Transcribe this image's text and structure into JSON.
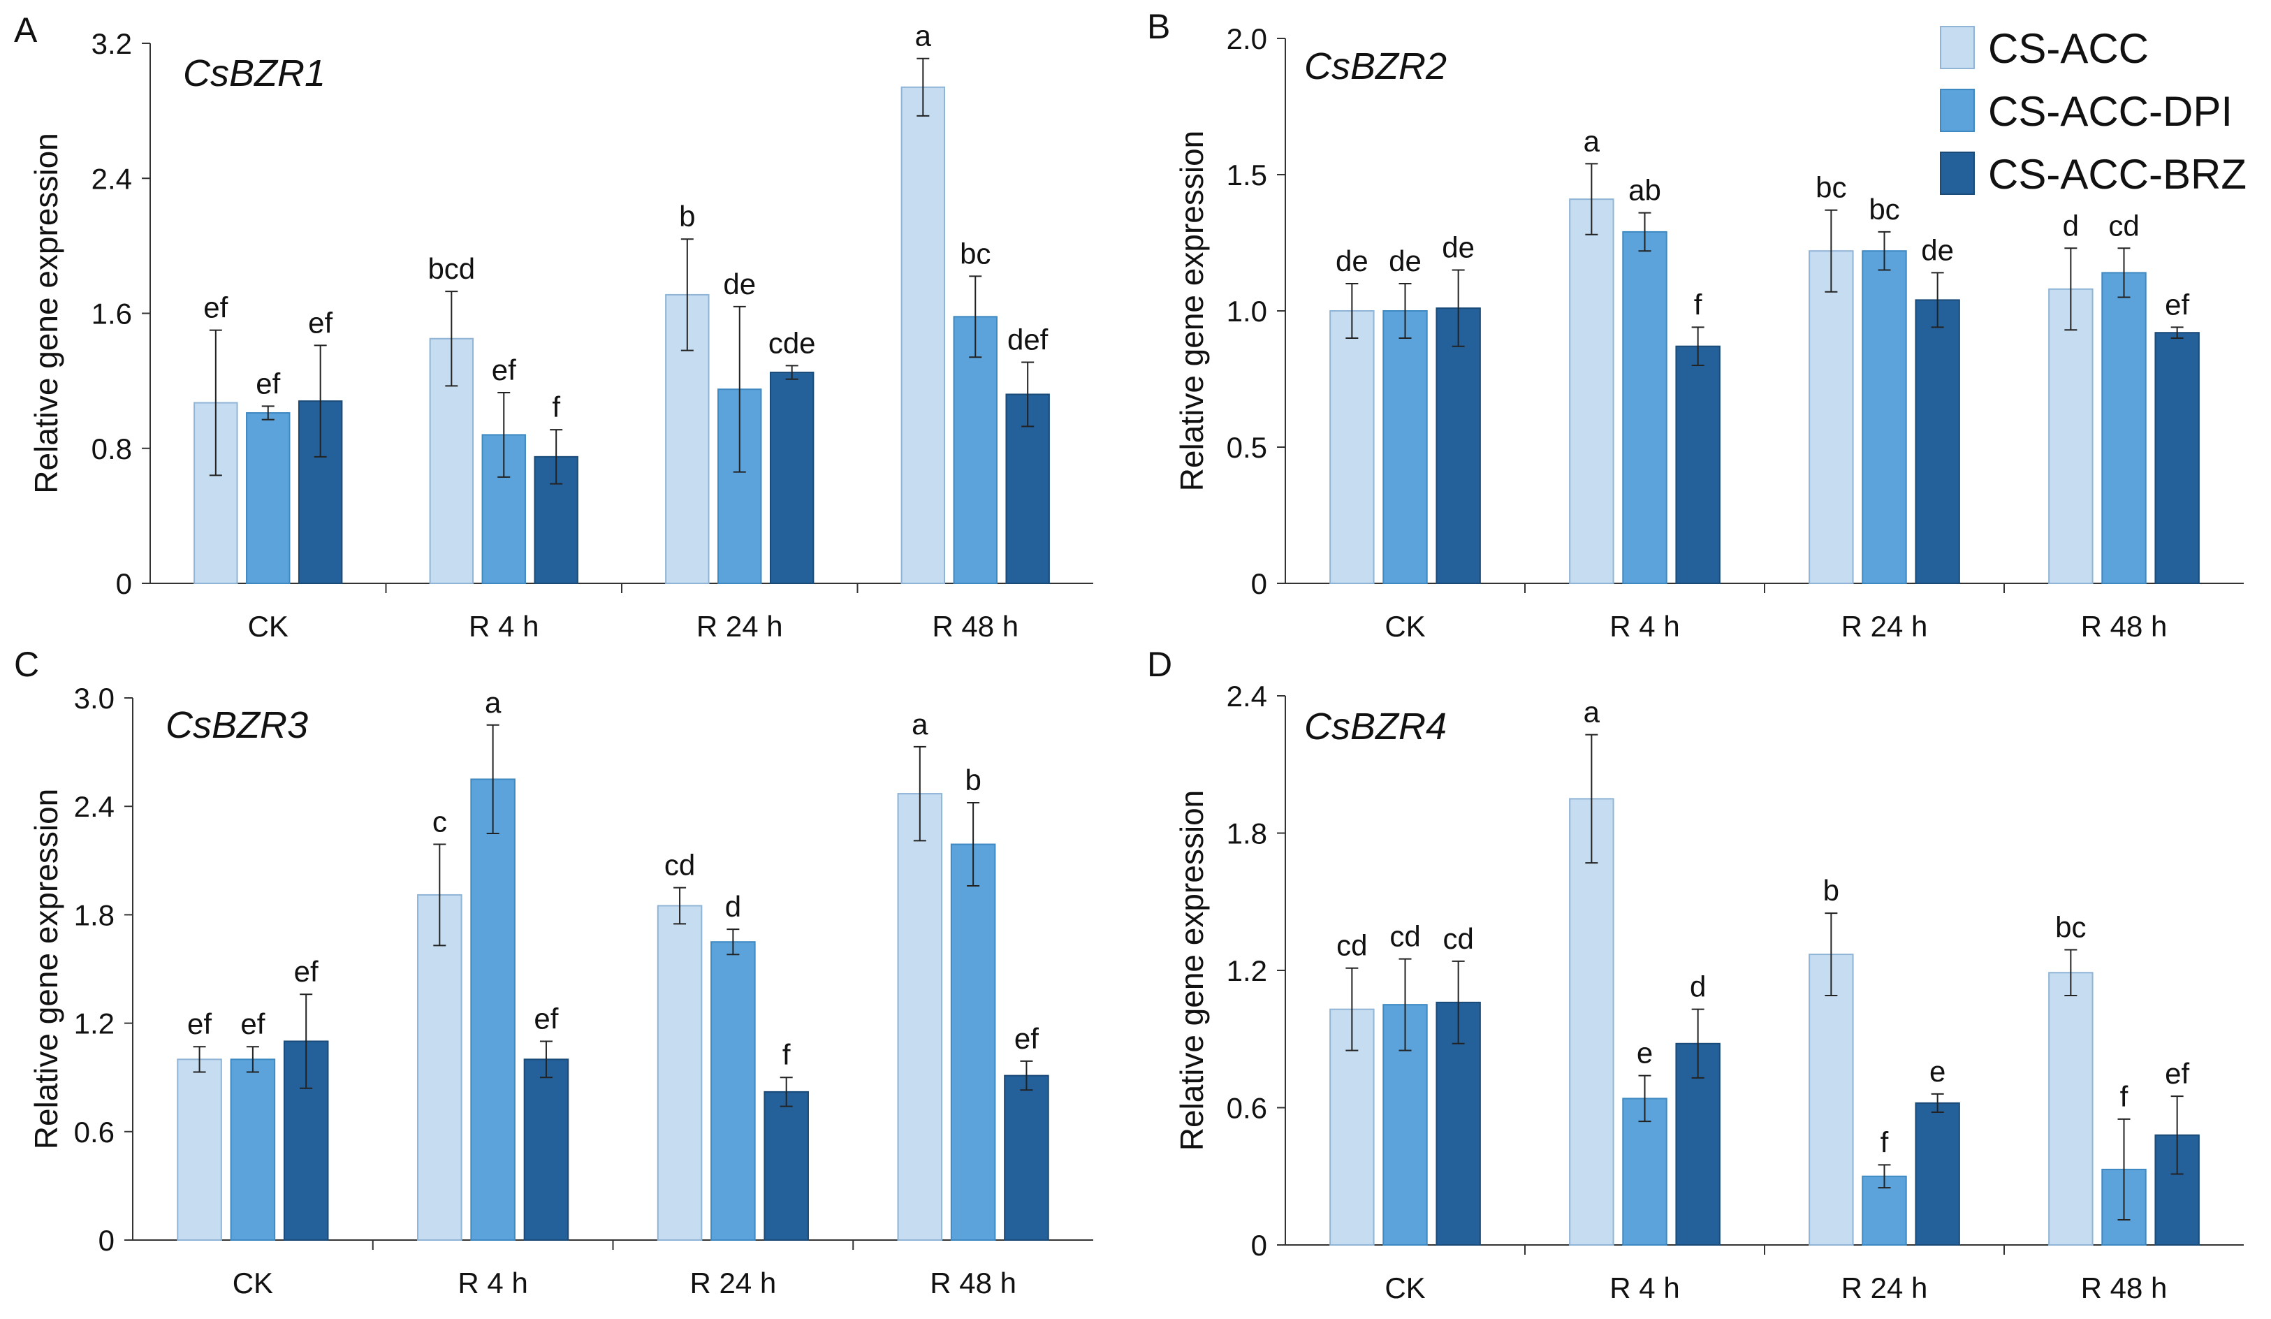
{
  "figure": {
    "legend": [
      {
        "label": "CS-ACC",
        "color": "#c6dcf0"
      },
      {
        "label": "CS-ACC-DPI",
        "color": "#5ba3da"
      },
      {
        "label": "CS-ACC-BRZ",
        "color": "#24609a"
      }
    ]
  },
  "chart_data": [
    {
      "panel": "A",
      "type": "bar",
      "title": "CsBZR1",
      "ylabel": "Relative gene expression",
      "categories": [
        "CK",
        "R 4 h",
        "R 24 h",
        "R 48 h"
      ],
      "ylim": [
        0,
        3.2
      ],
      "yticks": [
        "0",
        "0.8",
        "1.6",
        "2.4",
        "3.2"
      ],
      "series": [
        {
          "name": "CS-ACC",
          "values": [
            1.07,
            1.45,
            1.71,
            2.94
          ],
          "errors": [
            0.43,
            0.28,
            0.33,
            0.17
          ],
          "letters": [
            "ef",
            "bcd",
            "b",
            "a"
          ]
        },
        {
          "name": "CS-ACC-DPI",
          "values": [
            1.01,
            0.88,
            1.15,
            1.58
          ],
          "errors": [
            0.04,
            0.25,
            0.49,
            0.24
          ],
          "letters": [
            "ef",
            "ef",
            "de",
            "bc"
          ]
        },
        {
          "name": "CS-ACC-BRZ",
          "values": [
            1.08,
            0.75,
            1.25,
            1.12
          ],
          "errors": [
            0.33,
            0.16,
            0.04,
            0.19
          ],
          "letters": [
            "ef",
            "f",
            "cde",
            "def"
          ]
        }
      ]
    },
    {
      "panel": "B",
      "type": "bar",
      "title": "CsBZR2",
      "ylabel": "Relative gene expression",
      "categories": [
        "CK",
        "R 4 h",
        "R 24 h",
        "R 48 h"
      ],
      "ylim": [
        0,
        2.0
      ],
      "yticks": [
        "0",
        "0.5",
        "1.0",
        "1.5",
        "2.0"
      ],
      "series": [
        {
          "name": "CS-ACC",
          "values": [
            1.0,
            1.41,
            1.22,
            1.08
          ],
          "errors": [
            0.1,
            0.13,
            0.15,
            0.15
          ],
          "letters": [
            "de",
            "a",
            "bc",
            "d"
          ]
        },
        {
          "name": "CS-ACC-DPI",
          "values": [
            1.0,
            1.29,
            1.22,
            1.14
          ],
          "errors": [
            0.1,
            0.07,
            0.07,
            0.09
          ],
          "letters": [
            "de",
            "ab",
            "bc",
            "cd"
          ]
        },
        {
          "name": "CS-ACC-BRZ",
          "values": [
            1.01,
            0.87,
            1.04,
            0.92
          ],
          "errors": [
            0.14,
            0.07,
            0.1,
            0.02
          ],
          "letters": [
            "de",
            "f",
            "de",
            "ef"
          ]
        }
      ]
    },
    {
      "panel": "C",
      "type": "bar",
      "title": "CsBZR3",
      "ylabel": "Relative gene expression",
      "categories": [
        "CK",
        "R 4 h",
        "R 24 h",
        "R 48 h"
      ],
      "ylim": [
        0,
        3.0
      ],
      "yticks": [
        "0",
        "0.6",
        "1.2",
        "1.8",
        "2.4",
        "3.0"
      ],
      "series": [
        {
          "name": "CS-ACC",
          "values": [
            1.0,
            1.91,
            1.85,
            2.47
          ],
          "errors": [
            0.07,
            0.28,
            0.1,
            0.26
          ],
          "letters": [
            "ef",
            "c",
            "cd",
            "a"
          ]
        },
        {
          "name": "CS-ACC-DPI",
          "values": [
            1.0,
            2.55,
            1.65,
            2.19
          ],
          "errors": [
            0.07,
            0.3,
            0.07,
            0.23
          ],
          "letters": [
            "ef",
            "a",
            "d",
            "b"
          ]
        },
        {
          "name": "CS-ACC-BRZ",
          "values": [
            1.1,
            1.0,
            0.82,
            0.91
          ],
          "errors": [
            0.26,
            0.1,
            0.08,
            0.08
          ],
          "letters": [
            "ef",
            "ef",
            "f",
            "ef"
          ]
        }
      ]
    },
    {
      "panel": "D",
      "type": "bar",
      "title": "CsBZR4",
      "ylabel": "Relative gene expression",
      "categories": [
        "CK",
        "R 4 h",
        "R 24 h",
        "R 48 h"
      ],
      "ylim": [
        0,
        2.4
      ],
      "yticks": [
        "0",
        "0.6",
        "1.2",
        "1.8",
        "2.4"
      ],
      "series": [
        {
          "name": "CS-ACC",
          "values": [
            1.03,
            1.95,
            1.27,
            1.19
          ],
          "errors": [
            0.18,
            0.28,
            0.18,
            0.1
          ],
          "letters": [
            "cd",
            "a",
            "b",
            "bc"
          ]
        },
        {
          "name": "CS-ACC-DPI",
          "values": [
            1.05,
            0.64,
            0.3,
            0.33
          ],
          "errors": [
            0.2,
            0.1,
            0.05,
            0.22
          ],
          "letters": [
            "cd",
            "e",
            "f",
            "f"
          ]
        },
        {
          "name": "CS-ACC-BRZ",
          "values": [
            1.06,
            0.88,
            0.62,
            0.48
          ],
          "errors": [
            0.18,
            0.15,
            0.04,
            0.17
          ],
          "letters": [
            "cd",
            "d",
            "e",
            "ef"
          ]
        }
      ]
    }
  ]
}
